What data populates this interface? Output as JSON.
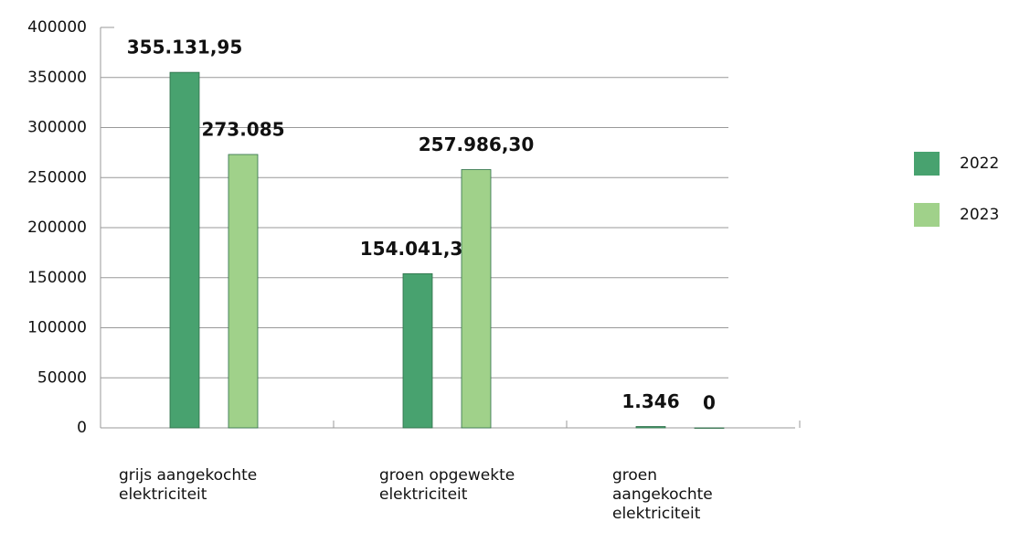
{
  "chart_data": {
    "type": "bar",
    "categories": [
      "grijs aangekochte elektriciteit",
      "groen opgewekte elektriciteit",
      "groen aangekochte elektriciteit"
    ],
    "series": [
      {
        "name": "2022",
        "color": "#48a26f",
        "values": [
          355131.95,
          154041.3,
          1346
        ],
        "value_labels": [
          "355.131,95",
          "154.041,30",
          "1.346"
        ]
      },
      {
        "name": "2023",
        "color": "#a0d18a",
        "values": [
          273085,
          257986.3,
          0
        ],
        "value_labels": [
          "273.085",
          "257.986,30",
          "0"
        ]
      }
    ],
    "ylim": [
      0,
      400000
    ],
    "yticks": [
      0,
      50000,
      100000,
      150000,
      200000,
      250000,
      300000,
      350000,
      400000
    ],
    "grid": true,
    "legend": "right"
  }
}
